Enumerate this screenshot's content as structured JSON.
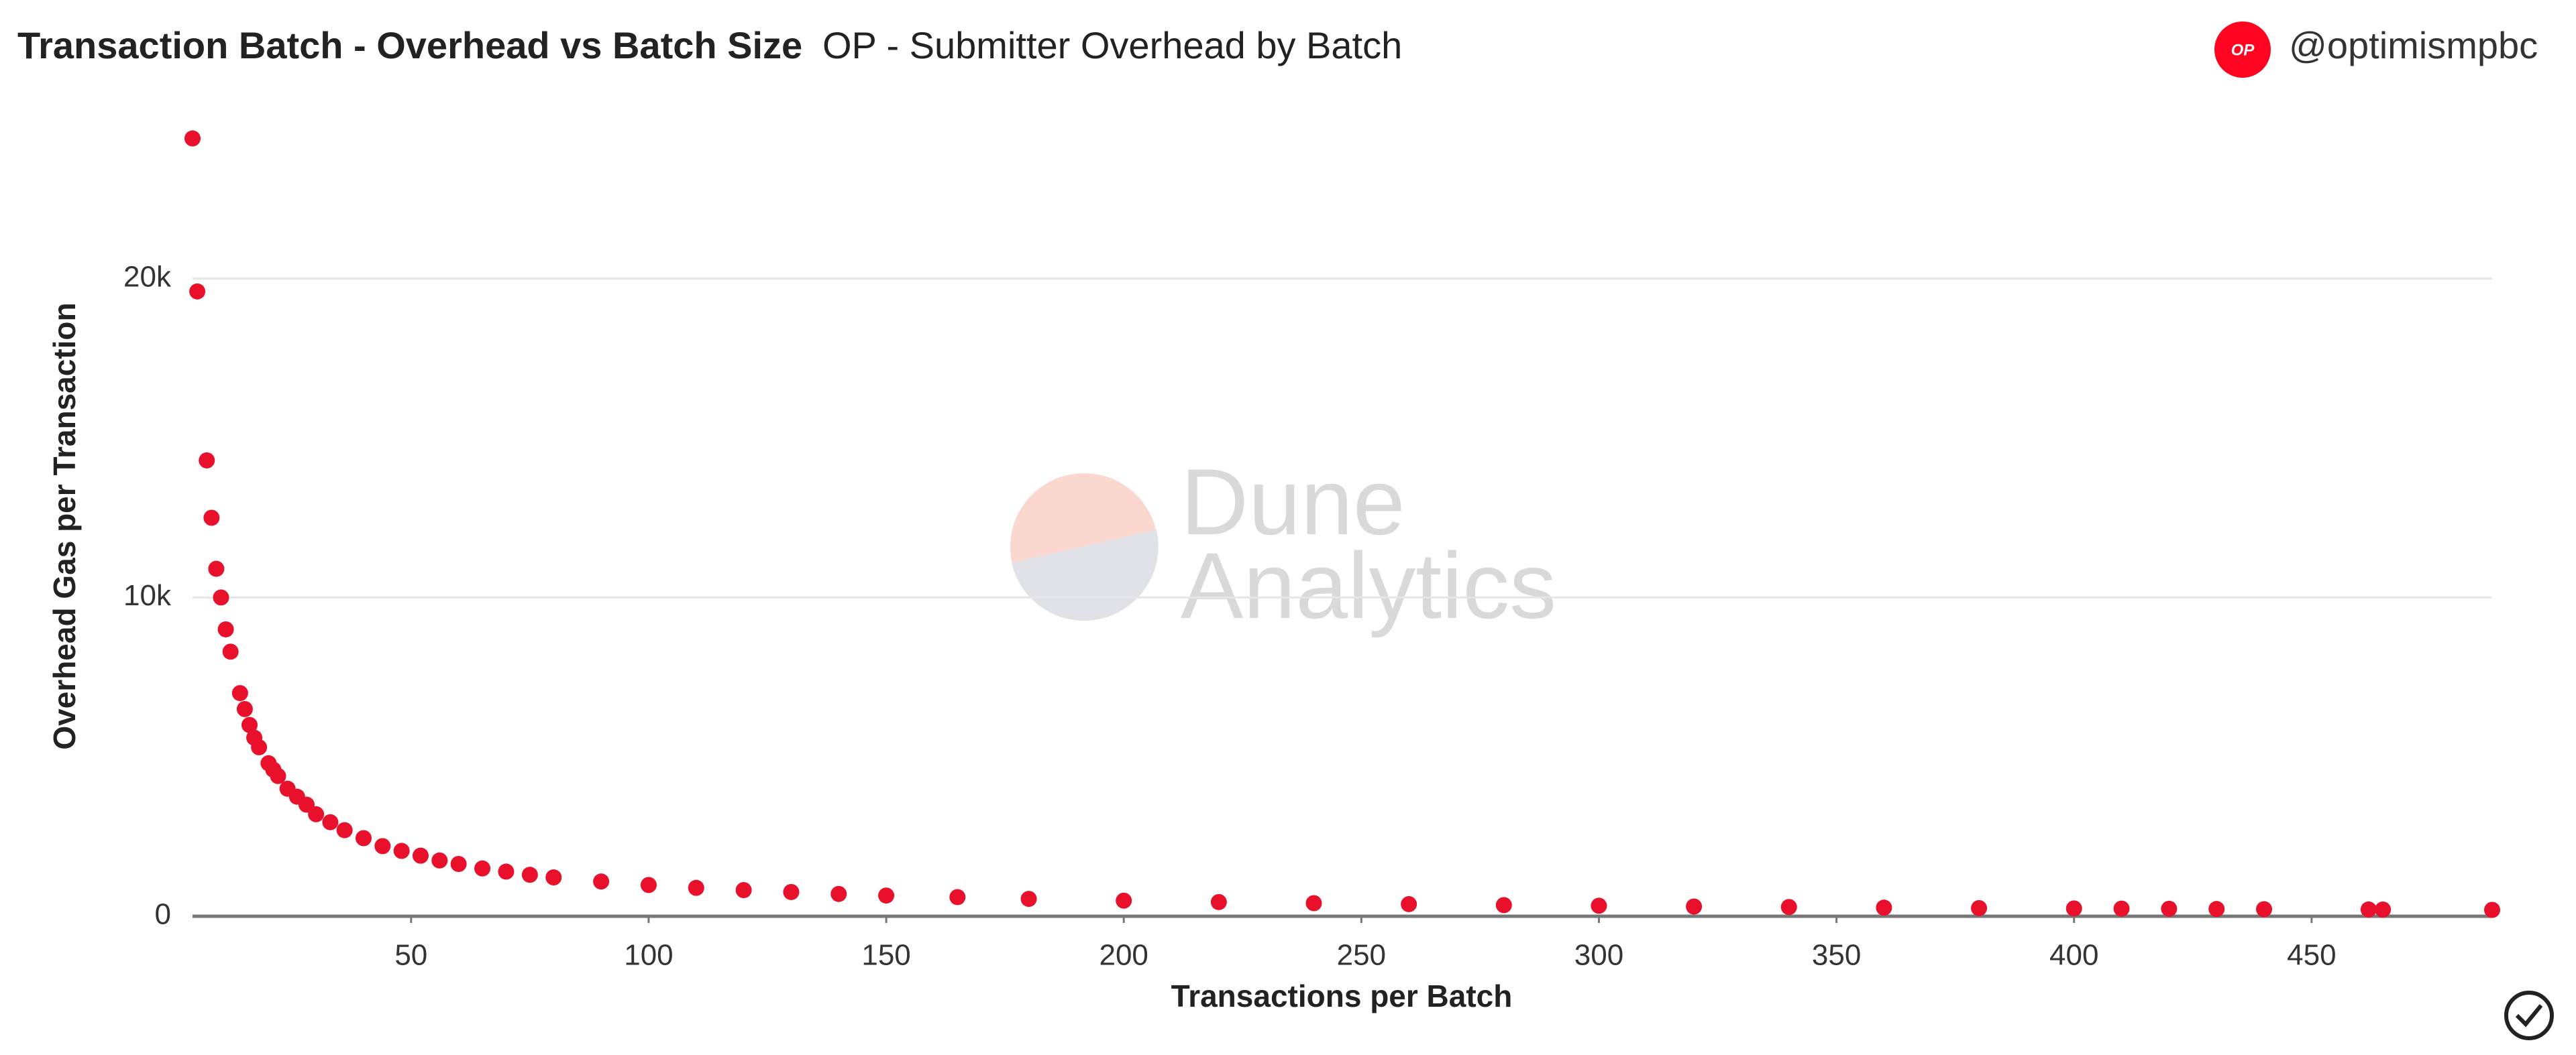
{
  "chart_data": {
    "type": "scatter",
    "title": "Transaction Batch - Overhead vs Batch Size",
    "subtitle": "OP - Submitter Overhead by Batch",
    "logo": "OP",
    "author": "@optimismpbc",
    "watermark": [
      "Dune",
      "Analytics"
    ],
    "xlabel": "Transactions per Batch",
    "ylabel": "Overhead Gas per Transaction",
    "color": "#e8102a",
    "x": [
      4,
      5,
      7,
      8,
      9,
      10,
      11,
      12,
      14,
      15,
      16,
      17,
      18,
      20,
      21,
      22,
      24,
      26,
      28,
      30,
      33,
      36,
      40,
      44,
      48,
      52,
      56,
      60,
      65,
      70,
      75,
      80,
      90,
      100,
      110,
      120,
      130,
      140,
      150,
      165,
      180,
      200,
      220,
      240,
      260,
      280,
      300,
      320,
      340,
      360,
      380,
      400,
      410,
      420,
      430,
      440,
      462,
      465,
      488
    ],
    "values": [
      24400,
      19600,
      14300,
      12500,
      10900,
      10000,
      9000,
      8300,
      7000,
      6500,
      6000,
      5600,
      5300,
      4800,
      4600,
      4400,
      4000,
      3750,
      3500,
      3200,
      2950,
      2700,
      2450,
      2200,
      2050,
      1900,
      1750,
      1640,
      1500,
      1400,
      1300,
      1220,
      1090,
      980,
      890,
      820,
      760,
      700,
      650,
      600,
      545,
      490,
      445,
      410,
      380,
      350,
      330,
      305,
      290,
      270,
      255,
      245,
      240,
      235,
      228,
      222,
      212,
      210,
      200
    ],
    "xlim": [
      4,
      488
    ],
    "ylim": [
      0,
      25000
    ],
    "xticks": [
      50,
      100,
      150,
      200,
      250,
      300,
      350,
      400,
      450
    ],
    "yticks": [
      0,
      {
        "value": 10000,
        "label": "10k"
      },
      {
        "value": 20000,
        "label": "20k"
      }
    ],
    "grid": true
  }
}
